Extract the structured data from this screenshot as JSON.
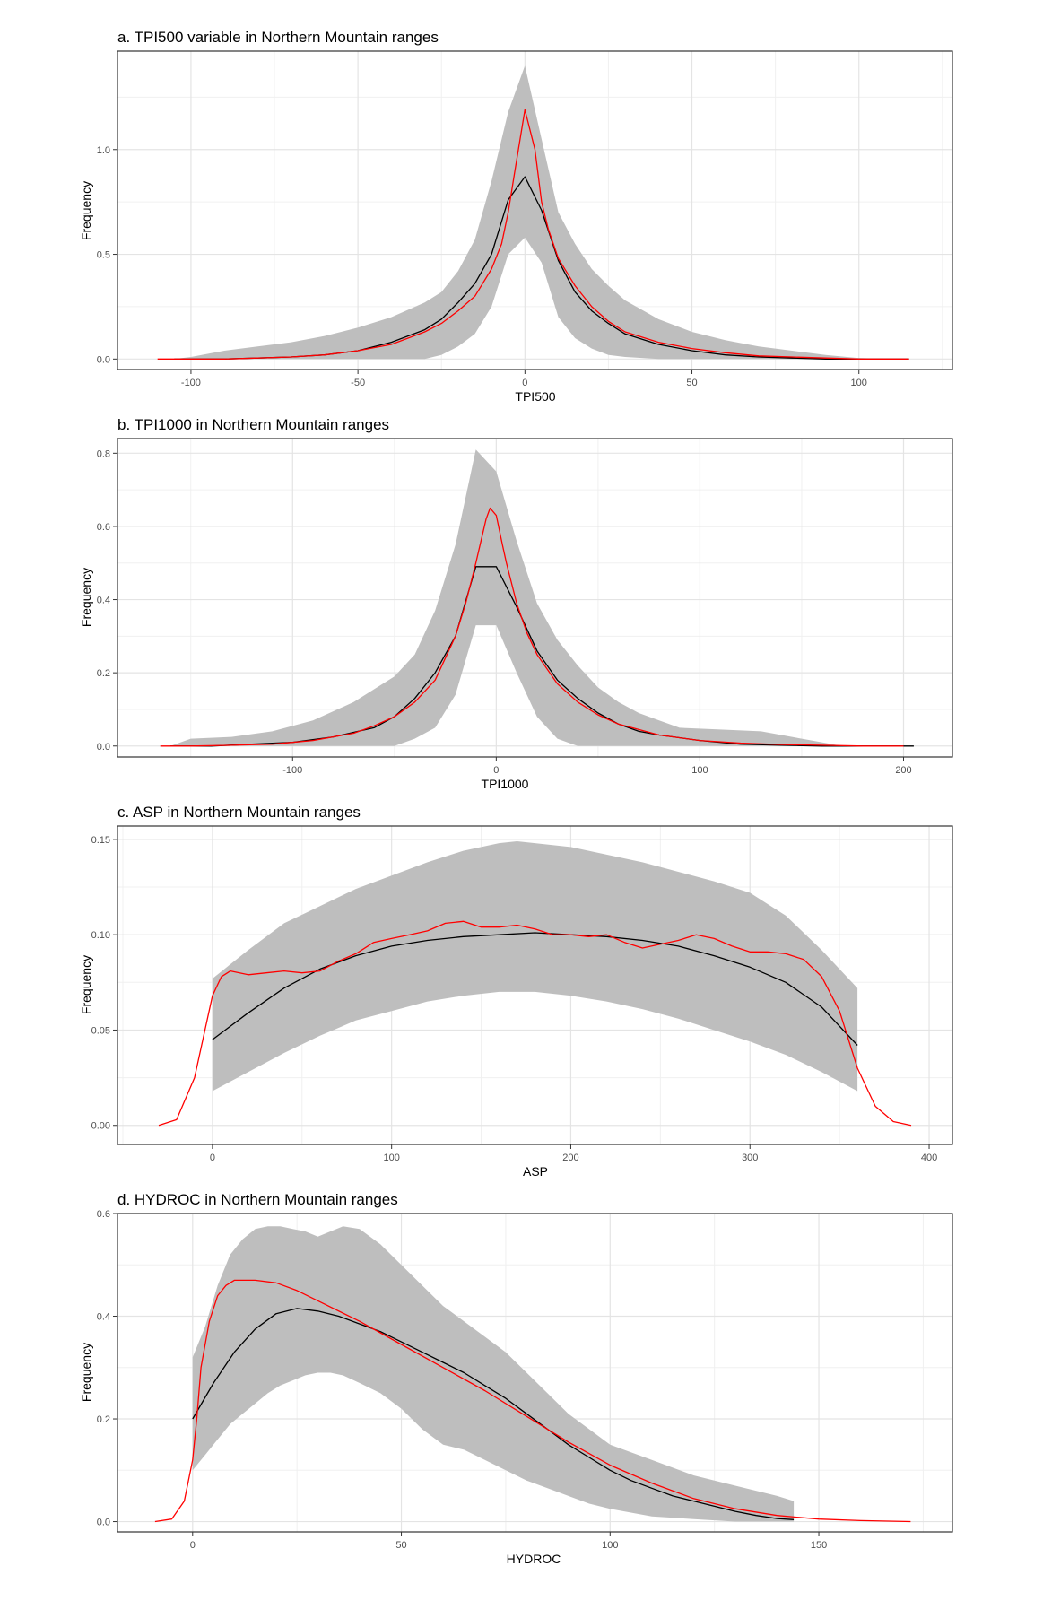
{
  "chart_data": [
    {
      "type": "area",
      "title": "a. TPI500 variable in Northern Mountain ranges",
      "xlabel": "TPI500",
      "ylabel": "Frequency",
      "xlim": [
        -122,
        128
      ],
      "ylim": [
        -0.05,
        1.47
      ],
      "xticks": [
        -100,
        -50,
        0,
        50,
        100
      ],
      "xtick_labels": [
        "-100",
        "-50",
        "0",
        "50",
        "100"
      ],
      "yticks": [
        0.0,
        0.5,
        1.0
      ],
      "ytick_labels": [
        "0.0",
        "0.5",
        "1.0"
      ],
      "grid": true,
      "series": [
        {
          "role": "band",
          "color": "#bebebe",
          "x": [
            -105,
            -100,
            -90,
            -80,
            -70,
            -60,
            -50,
            -40,
            -30,
            -25,
            -20,
            -15,
            -10,
            -5,
            0,
            5,
            10,
            15,
            20,
            25,
            30,
            40,
            50,
            60,
            70,
            80,
            90,
            100,
            110,
            115
          ],
          "upper": [
            0.0,
            0.01,
            0.04,
            0.06,
            0.08,
            0.11,
            0.15,
            0.2,
            0.27,
            0.32,
            0.42,
            0.57,
            0.85,
            1.18,
            1.4,
            1.05,
            0.7,
            0.55,
            0.43,
            0.35,
            0.28,
            0.19,
            0.13,
            0.09,
            0.06,
            0.04,
            0.02,
            0.005,
            0.0,
            0.0
          ],
          "lower": [
            0.0,
            0.0,
            0.0,
            0.0,
            0.0,
            0.0,
            0.0,
            0.0,
            0.0,
            0.02,
            0.06,
            0.12,
            0.25,
            0.5,
            0.58,
            0.46,
            0.2,
            0.1,
            0.05,
            0.02,
            0.01,
            0.0,
            0.0,
            0.0,
            0.0,
            0.0,
            0.0,
            0.0,
            0.0,
            0.0
          ]
        },
        {
          "role": "mean",
          "color": "#000000",
          "x": [
            -105,
            -90,
            -80,
            -70,
            -60,
            -50,
            -40,
            -30,
            -25,
            -20,
            -15,
            -10,
            -5,
            0,
            5,
            10,
            15,
            20,
            25,
            30,
            40,
            50,
            60,
            70,
            80,
            90,
            100,
            110,
            115
          ],
          "y": [
            0.0,
            0.0,
            0.005,
            0.01,
            0.02,
            0.04,
            0.08,
            0.14,
            0.19,
            0.27,
            0.36,
            0.5,
            0.76,
            0.87,
            0.71,
            0.47,
            0.32,
            0.23,
            0.17,
            0.12,
            0.07,
            0.04,
            0.02,
            0.01,
            0.005,
            0.0,
            0.0,
            0.0,
            0.0
          ]
        },
        {
          "role": "observed",
          "color": "#ff0000",
          "x": [
            -110,
            -100,
            -90,
            -80,
            -70,
            -60,
            -50,
            -40,
            -30,
            -25,
            -20,
            -15,
            -10,
            -7,
            -5,
            -3,
            0,
            3,
            5,
            7,
            10,
            15,
            20,
            25,
            30,
            40,
            50,
            60,
            70,
            80,
            90,
            100,
            110,
            115
          ],
          "y": [
            0.0,
            0.0,
            0.0,
            0.005,
            0.01,
            0.02,
            0.04,
            0.07,
            0.13,
            0.17,
            0.23,
            0.3,
            0.43,
            0.55,
            0.7,
            0.9,
            1.19,
            1.0,
            0.75,
            0.62,
            0.48,
            0.35,
            0.25,
            0.18,
            0.13,
            0.08,
            0.05,
            0.03,
            0.015,
            0.01,
            0.005,
            0.0,
            0.0,
            0.0
          ]
        }
      ]
    },
    {
      "type": "area",
      "title": "b. TPI1000 in Northern Mountain ranges",
      "xlabel": "TPI1000",
      "ylabel": "Frequency",
      "xlim": [
        -186,
        224
      ],
      "ylim": [
        -0.03,
        0.84
      ],
      "xticks": [
        -100,
        0,
        100,
        200
      ],
      "xtick_labels": [
        "-100",
        "0",
        "100",
        "200"
      ],
      "yticks": [
        0.0,
        0.2,
        0.4,
        0.6,
        0.8
      ],
      "ytick_labels": [
        "0.0",
        "0.2",
        "0.4",
        "0.6",
        "0.8"
      ],
      "grid": true,
      "series": [
        {
          "role": "band",
          "color": "#bebebe",
          "x": [
            -160,
            -150,
            -130,
            -110,
            -90,
            -70,
            -50,
            -40,
            -30,
            -20,
            -10,
            0,
            10,
            20,
            30,
            40,
            50,
            60,
            70,
            80,
            90,
            110,
            130,
            150,
            170,
            200
          ],
          "upper": [
            0.0,
            0.02,
            0.025,
            0.04,
            0.07,
            0.12,
            0.19,
            0.25,
            0.37,
            0.55,
            0.81,
            0.75,
            0.56,
            0.39,
            0.29,
            0.22,
            0.16,
            0.12,
            0.09,
            0.07,
            0.05,
            0.045,
            0.04,
            0.02,
            0.0,
            0.0
          ],
          "lower": [
            0.0,
            0.0,
            0.0,
            0.0,
            0.0,
            0.0,
            0.0,
            0.02,
            0.05,
            0.14,
            0.33,
            0.33,
            0.2,
            0.08,
            0.02,
            0.0,
            0.0,
            0.0,
            0.0,
            0.0,
            0.0,
            0.0,
            0.0,
            0.0,
            0.0,
            0.0
          ]
        },
        {
          "role": "mean",
          "color": "#000000",
          "x": [
            -160,
            -140,
            -120,
            -100,
            -80,
            -60,
            -50,
            -40,
            -30,
            -20,
            -10,
            0,
            10,
            20,
            30,
            40,
            50,
            60,
            70,
            80,
            100,
            120,
            140,
            160,
            180,
            205
          ],
          "y": [
            0.0,
            0.0,
            0.005,
            0.01,
            0.025,
            0.05,
            0.08,
            0.13,
            0.2,
            0.3,
            0.49,
            0.49,
            0.38,
            0.26,
            0.18,
            0.13,
            0.09,
            0.06,
            0.04,
            0.03,
            0.015,
            0.005,
            0.002,
            0.0,
            0.0,
            0.0
          ]
        },
        {
          "role": "observed",
          "color": "#ff0000",
          "x": [
            -165,
            -150,
            -130,
            -110,
            -90,
            -70,
            -60,
            -50,
            -40,
            -30,
            -20,
            -15,
            -10,
            -5,
            -3,
            0,
            3,
            5,
            10,
            15,
            20,
            30,
            40,
            50,
            60,
            80,
            100,
            120,
            140,
            160,
            180,
            200
          ],
          "y": [
            0.0,
            0.0,
            0.002,
            0.005,
            0.015,
            0.035,
            0.055,
            0.08,
            0.12,
            0.18,
            0.3,
            0.39,
            0.5,
            0.62,
            0.65,
            0.63,
            0.55,
            0.5,
            0.39,
            0.31,
            0.25,
            0.17,
            0.12,
            0.085,
            0.06,
            0.03,
            0.015,
            0.008,
            0.004,
            0.002,
            0.0,
            0.0
          ]
        }
      ]
    },
    {
      "type": "area",
      "title": "c. ASP in Northern Mountain ranges",
      "xlabel": "ASP",
      "ylabel": "Frequency",
      "xlim": [
        -53,
        413
      ],
      "ylim": [
        -0.01,
        0.157
      ],
      "xticks": [
        0,
        100,
        200,
        300,
        400
      ],
      "xtick_labels": [
        "0",
        "100",
        "200",
        "300",
        "400"
      ],
      "yticks": [
        0.0,
        0.05,
        0.1,
        0.15
      ],
      "ytick_labels": [
        "0.00",
        "0.05",
        "0.10",
        "0.15"
      ],
      "grid": true,
      "series": [
        {
          "role": "band",
          "color": "#bebebe",
          "x": [
            0,
            20,
            40,
            60,
            80,
            100,
            120,
            140,
            160,
            170,
            180,
            200,
            220,
            240,
            260,
            280,
            300,
            320,
            340,
            360
          ],
          "upper": [
            0.077,
            0.092,
            0.106,
            0.115,
            0.124,
            0.131,
            0.138,
            0.144,
            0.148,
            0.149,
            0.148,
            0.146,
            0.142,
            0.138,
            0.133,
            0.128,
            0.122,
            0.11,
            0.092,
            0.072
          ],
          "lower": [
            0.018,
            0.028,
            0.038,
            0.047,
            0.055,
            0.06,
            0.065,
            0.068,
            0.07,
            0.07,
            0.07,
            0.068,
            0.065,
            0.061,
            0.056,
            0.05,
            0.044,
            0.037,
            0.028,
            0.018
          ]
        },
        {
          "role": "mean",
          "color": "#000000",
          "x": [
            0,
            20,
            40,
            60,
            80,
            100,
            120,
            140,
            160,
            180,
            200,
            220,
            240,
            260,
            280,
            300,
            320,
            340,
            360
          ],
          "y": [
            0.045,
            0.059,
            0.072,
            0.082,
            0.089,
            0.094,
            0.097,
            0.099,
            0.1,
            0.101,
            0.1,
            0.099,
            0.097,
            0.094,
            0.089,
            0.083,
            0.075,
            0.062,
            0.042
          ]
        },
        {
          "role": "observed",
          "color": "#ff0000",
          "x": [
            -30,
            -20,
            -10,
            0,
            5,
            10,
            20,
            30,
            40,
            50,
            60,
            70,
            80,
            90,
            100,
            110,
            120,
            130,
            140,
            150,
            160,
            170,
            180,
            190,
            200,
            210,
            220,
            230,
            240,
            250,
            260,
            270,
            280,
            290,
            300,
            310,
            320,
            330,
            340,
            350,
            360,
            370,
            380,
            390
          ],
          "y": [
            0.0,
            0.003,
            0.025,
            0.068,
            0.078,
            0.081,
            0.079,
            0.08,
            0.081,
            0.08,
            0.081,
            0.086,
            0.09,
            0.096,
            0.098,
            0.1,
            0.102,
            0.106,
            0.107,
            0.104,
            0.104,
            0.105,
            0.103,
            0.1,
            0.1,
            0.099,
            0.1,
            0.096,
            0.093,
            0.095,
            0.097,
            0.1,
            0.098,
            0.094,
            0.091,
            0.091,
            0.09,
            0.087,
            0.078,
            0.06,
            0.03,
            0.01,
            0.002,
            0.0
          ]
        }
      ]
    },
    {
      "type": "area",
      "title": "d. HYDROC in Northern Mountain ranges",
      "xlabel": "HYDROC",
      "ylabel": "Frequency",
      "xlim": [
        -18,
        182
      ],
      "ylim": [
        -0.02,
        0.6
      ],
      "xticks": [
        0,
        50,
        100,
        150
      ],
      "xtick_labels": [
        "0",
        "50",
        "100",
        "150"
      ],
      "yticks": [
        0.0,
        0.2,
        0.4,
        0.6
      ],
      "ytick_labels": [
        "0.0",
        "0.2",
        "0.4",
        "0.6"
      ],
      "grid": true,
      "series": [
        {
          "role": "band",
          "color": "#bebebe",
          "x": [
            0,
            3,
            6,
            9,
            12,
            15,
            18,
            21,
            24,
            27,
            30,
            33,
            36,
            40,
            45,
            50,
            55,
            60,
            65,
            70,
            75,
            80,
            85,
            90,
            95,
            100,
            110,
            120,
            130,
            140,
            144
          ],
          "upper": [
            0.32,
            0.38,
            0.46,
            0.52,
            0.55,
            0.57,
            0.575,
            0.575,
            0.57,
            0.565,
            0.555,
            0.565,
            0.575,
            0.57,
            0.54,
            0.5,
            0.46,
            0.42,
            0.39,
            0.36,
            0.33,
            0.29,
            0.25,
            0.21,
            0.18,
            0.15,
            0.12,
            0.09,
            0.07,
            0.05,
            0.04
          ],
          "lower": [
            0.1,
            0.13,
            0.16,
            0.19,
            0.21,
            0.23,
            0.25,
            0.265,
            0.275,
            0.285,
            0.29,
            0.29,
            0.285,
            0.27,
            0.25,
            0.22,
            0.18,
            0.15,
            0.14,
            0.12,
            0.1,
            0.08,
            0.065,
            0.05,
            0.035,
            0.025,
            0.01,
            0.005,
            0.0,
            0.0,
            0.0
          ]
        },
        {
          "role": "mean",
          "color": "#000000",
          "x": [
            0,
            5,
            10,
            15,
            20,
            25,
            30,
            35,
            40,
            45,
            50,
            55,
            60,
            65,
            70,
            75,
            80,
            85,
            90,
            95,
            100,
            105,
            110,
            115,
            120,
            125,
            130,
            135,
            140,
            144
          ],
          "y": [
            0.2,
            0.27,
            0.33,
            0.375,
            0.405,
            0.415,
            0.41,
            0.4,
            0.385,
            0.37,
            0.35,
            0.33,
            0.31,
            0.29,
            0.265,
            0.24,
            0.21,
            0.18,
            0.15,
            0.125,
            0.1,
            0.08,
            0.065,
            0.05,
            0.04,
            0.03,
            0.02,
            0.012,
            0.006,
            0.004
          ]
        },
        {
          "role": "observed",
          "color": "#ff0000",
          "x": [
            -9,
            -5,
            -2,
            0,
            1,
            2,
            4,
            6,
            8,
            10,
            15,
            20,
            25,
            30,
            40,
            50,
            60,
            70,
            80,
            90,
            100,
            110,
            120,
            130,
            140,
            150,
            160,
            172
          ],
          "y": [
            0.0,
            0.005,
            0.04,
            0.12,
            0.2,
            0.3,
            0.39,
            0.44,
            0.46,
            0.47,
            0.47,
            0.465,
            0.45,
            0.43,
            0.39,
            0.345,
            0.3,
            0.255,
            0.205,
            0.155,
            0.11,
            0.075,
            0.045,
            0.025,
            0.012,
            0.005,
            0.002,
            0.0
          ]
        }
      ]
    }
  ]
}
